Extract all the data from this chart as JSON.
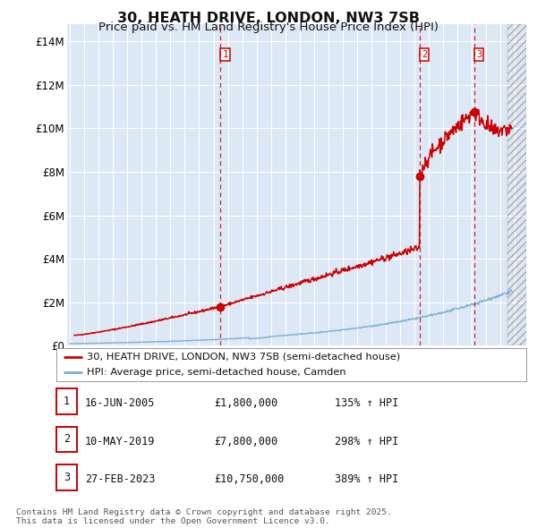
{
  "title": "30, HEATH DRIVE, LONDON, NW3 7SB",
  "subtitle": "Price paid vs. HM Land Registry's House Price Index (HPI)",
  "title_fontsize": 11.5,
  "subtitle_fontsize": 9.5,
  "fig_bg_color": "#ffffff",
  "plot_bg_color": "#dce8f5",
  "grid_color": "#ffffff",
  "ylabel_ticks": [
    "£0",
    "£2M",
    "£4M",
    "£6M",
    "£8M",
    "£10M",
    "£12M",
    "£14M"
  ],
  "ytick_values": [
    0,
    2000000,
    4000000,
    6000000,
    8000000,
    10000000,
    12000000,
    14000000
  ],
  "ylim": [
    0,
    14800000
  ],
  "xlim_start": 1994.8,
  "xlim_end": 2026.8,
  "vline_dates": [
    2005.46,
    2019.36,
    2023.16
  ],
  "vline_labels": [
    "1",
    "2",
    "3"
  ],
  "purchase_dates": [
    2005.46,
    2019.36,
    2023.16
  ],
  "purchase_prices": [
    1800000,
    7800000,
    10750000
  ],
  "legend_line1": "30, HEATH DRIVE, LONDON, NW3 7SB (semi-detached house)",
  "legend_line2": "HPI: Average price, semi-detached house, Camden",
  "table_data": [
    [
      "1",
      "16-JUN-2005",
      "£1,800,000",
      "135% ↑ HPI"
    ],
    [
      "2",
      "10-MAY-2019",
      "£7,800,000",
      "298% ↑ HPI"
    ],
    [
      "3",
      "27-FEB-2023",
      "£10,750,000",
      "389% ↑ HPI"
    ]
  ],
  "footer": "Contains HM Land Registry data © Crown copyright and database right 2025.\nThis data is licensed under the Open Government Licence v3.0.",
  "red_color": "#cc0000",
  "blue_color": "#7ab0d4"
}
